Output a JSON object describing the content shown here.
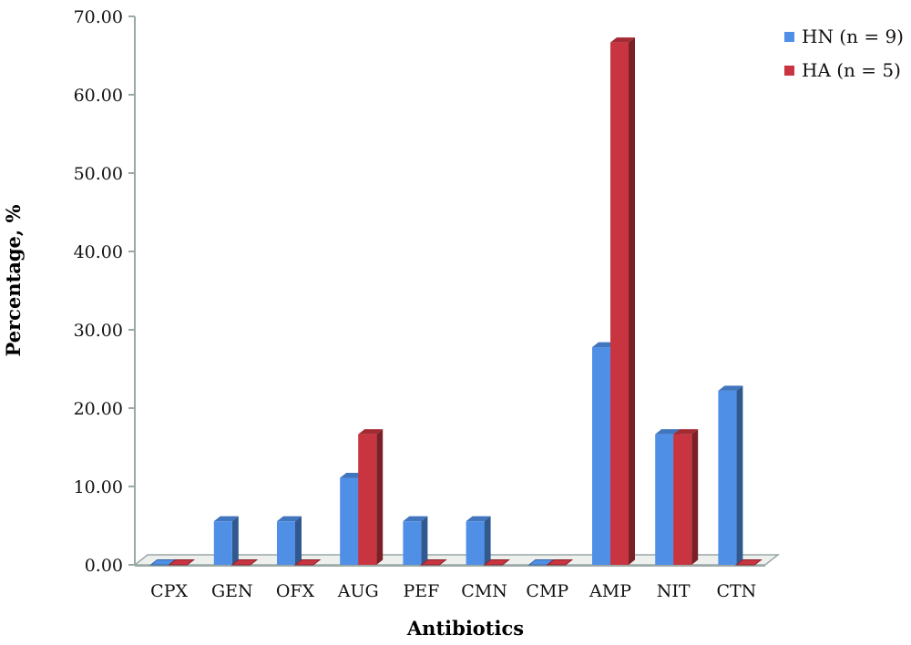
{
  "chart_data": {
    "type": "bar",
    "xlabel": "Antibiotics",
    "ylabel": "Percentage, %",
    "ylim": [
      0,
      70
    ],
    "yticks": [
      "0.00",
      "10.00",
      "20.00",
      "30.00",
      "40.00",
      "50.00",
      "60.00",
      "70.00"
    ],
    "categories": [
      "CPX",
      "GEN",
      "OFX",
      "AUG",
      "PEF",
      "CMN",
      "CMP",
      "AMP",
      "NIT",
      "CTN"
    ],
    "series": [
      {
        "name": "HN (n = 9)",
        "color": "#4f8fe6",
        "values": [
          0,
          5.56,
          5.56,
          11.11,
          5.56,
          5.56,
          0,
          27.78,
          16.67,
          22.22
        ]
      },
      {
        "name": "HA (n = 5)",
        "color": "#c8343f",
        "values": [
          0,
          0,
          0,
          16.67,
          0,
          0,
          0,
          66.67,
          16.67,
          0
        ]
      }
    ],
    "legend_position": "top-right",
    "grid": false,
    "style": "3d-column"
  }
}
